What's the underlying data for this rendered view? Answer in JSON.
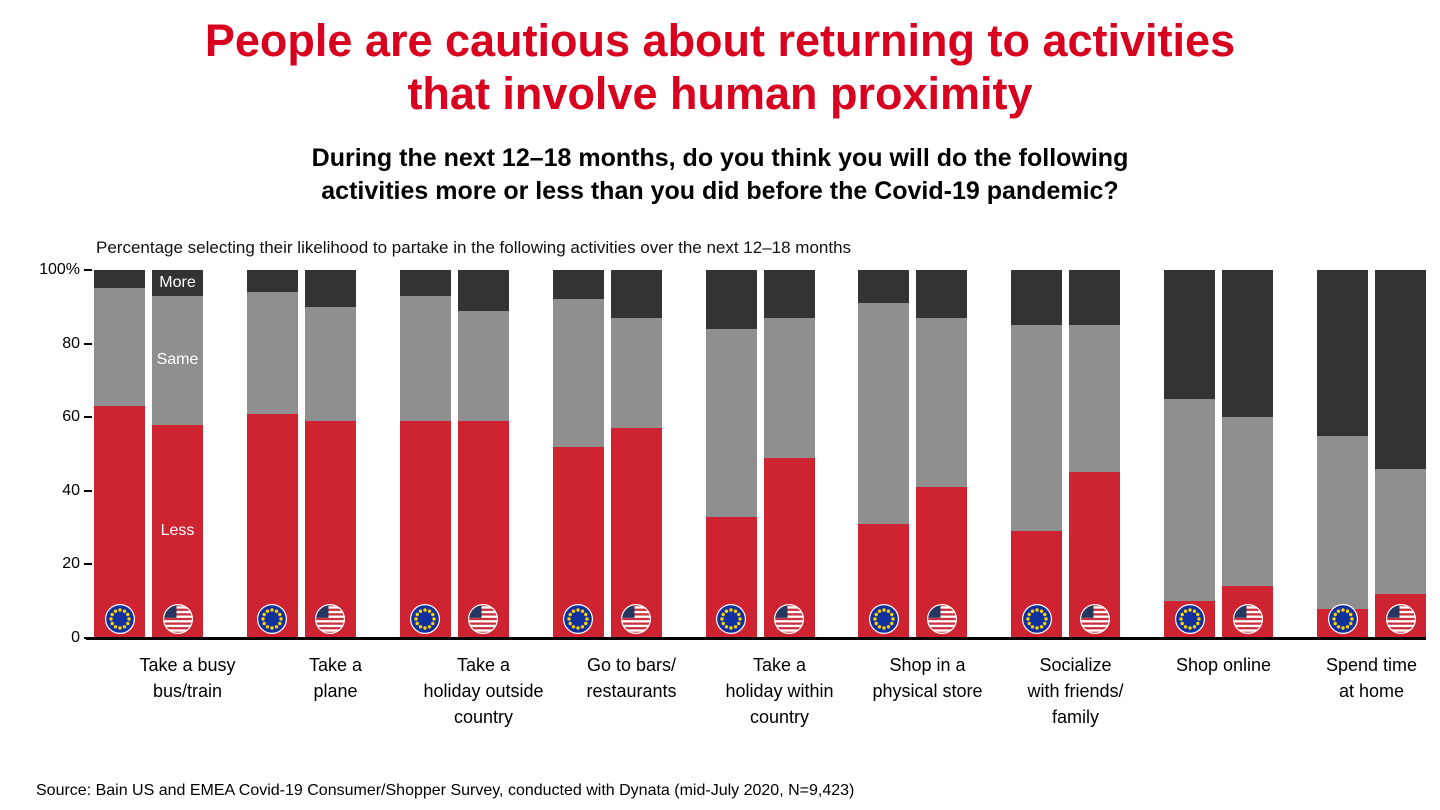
{
  "title": {
    "line1": "People are cautious about returning to activities",
    "line2": "that involve human proximity"
  },
  "subtitle": {
    "line1": "During the next 12–18 months, do you think you will do the following",
    "line2": "activities more or less than you did before the Covid-19 pandemic?"
  },
  "axis_note": "Percentage selecting their likelihood to partake in the following activities over the next 12–18 months",
  "source": "Source: Bain US and EMEA Covid-19 Consumer/Shopper Survey, conducted with Dynata (mid-July 2020, N=9,423)",
  "colors": {
    "title": "#d8001e",
    "less": "#ce2431",
    "same": "#8f8f8f",
    "more": "#333333"
  },
  "chart_data": {
    "type": "bar",
    "stacked": true,
    "title": "Percentage selecting their likelihood to partake in the following activities over the next 12–18 months",
    "ylim": [
      0,
      100
    ],
    "grid": false,
    "y_axis": [
      {
        "label": "100%",
        "v": 100
      },
      {
        "label": "80",
        "v": 80
      },
      {
        "label": "60",
        "v": 60
      },
      {
        "label": "40",
        "v": 40
      },
      {
        "label": "20",
        "v": 20
      },
      {
        "label": "0",
        "v": 0
      }
    ],
    "segment_labels": {
      "more": "More",
      "same": "Same",
      "less": "Less"
    },
    "segment_order": [
      "less",
      "same",
      "more"
    ],
    "regions": [
      "EU",
      "US"
    ],
    "region_keys": [
      "eu",
      "us"
    ],
    "categories": [
      "Take a busy bus/train",
      "Take a plane",
      "Take a holiday outside country",
      "Go to bars/restaurants",
      "Take a holiday within country",
      "Shop in a physical store",
      "Socialize with friends/family",
      "Shop online",
      "Spend time at home"
    ],
    "groups": [
      {
        "category": "Take a busy bus/train",
        "label_lines": [
          "Take a busy",
          "bus/train"
        ],
        "eu": {
          "less": 63,
          "same": 32,
          "more": 5
        },
        "us": {
          "less": 58,
          "same": 35,
          "more": 7
        }
      },
      {
        "category": "Take a plane",
        "label_lines": [
          "Take a",
          "plane"
        ],
        "eu": {
          "less": 61,
          "same": 33,
          "more": 6
        },
        "us": {
          "less": 59,
          "same": 31,
          "more": 10
        }
      },
      {
        "category": "Take a holiday outside country",
        "label_lines": [
          "Take a",
          "holiday outside",
          "country"
        ],
        "eu": {
          "less": 59,
          "same": 34,
          "more": 7
        },
        "us": {
          "less": 59,
          "same": 30,
          "more": 11
        }
      },
      {
        "category": "Go to bars/restaurants",
        "label_lines": [
          "Go to bars/",
          "restaurants"
        ],
        "eu": {
          "less": 52,
          "same": 40,
          "more": 8
        },
        "us": {
          "less": 57,
          "same": 30,
          "more": 13
        }
      },
      {
        "category": "Take a holiday within country",
        "label_lines": [
          "Take a",
          "holiday within",
          "country"
        ],
        "eu": {
          "less": 33,
          "same": 51,
          "more": 16
        },
        "us": {
          "less": 49,
          "same": 38,
          "more": 13
        }
      },
      {
        "category": "Shop in a physical store",
        "label_lines": [
          "Shop in a",
          "physical store"
        ],
        "eu": {
          "less": 31,
          "same": 60,
          "more": 9
        },
        "us": {
          "less": 41,
          "same": 46,
          "more": 13
        }
      },
      {
        "category": "Socialize with friends/family",
        "label_lines": [
          "Socialize",
          "with friends/",
          "family"
        ],
        "eu": {
          "less": 29,
          "same": 56,
          "more": 15
        },
        "us": {
          "less": 45,
          "same": 40,
          "more": 15
        }
      },
      {
        "category": "Shop online",
        "label_lines": [
          "Shop online"
        ],
        "eu": {
          "less": 10,
          "same": 55,
          "more": 35
        },
        "us": {
          "less": 14,
          "same": 46,
          "more": 40
        }
      },
      {
        "category": "Spend time at home",
        "label_lines": [
          "Spend time",
          "at home"
        ],
        "eu": {
          "less": 8,
          "same": 47,
          "more": 45
        },
        "us": {
          "less": 12,
          "same": 34,
          "more": 54
        }
      }
    ]
  }
}
